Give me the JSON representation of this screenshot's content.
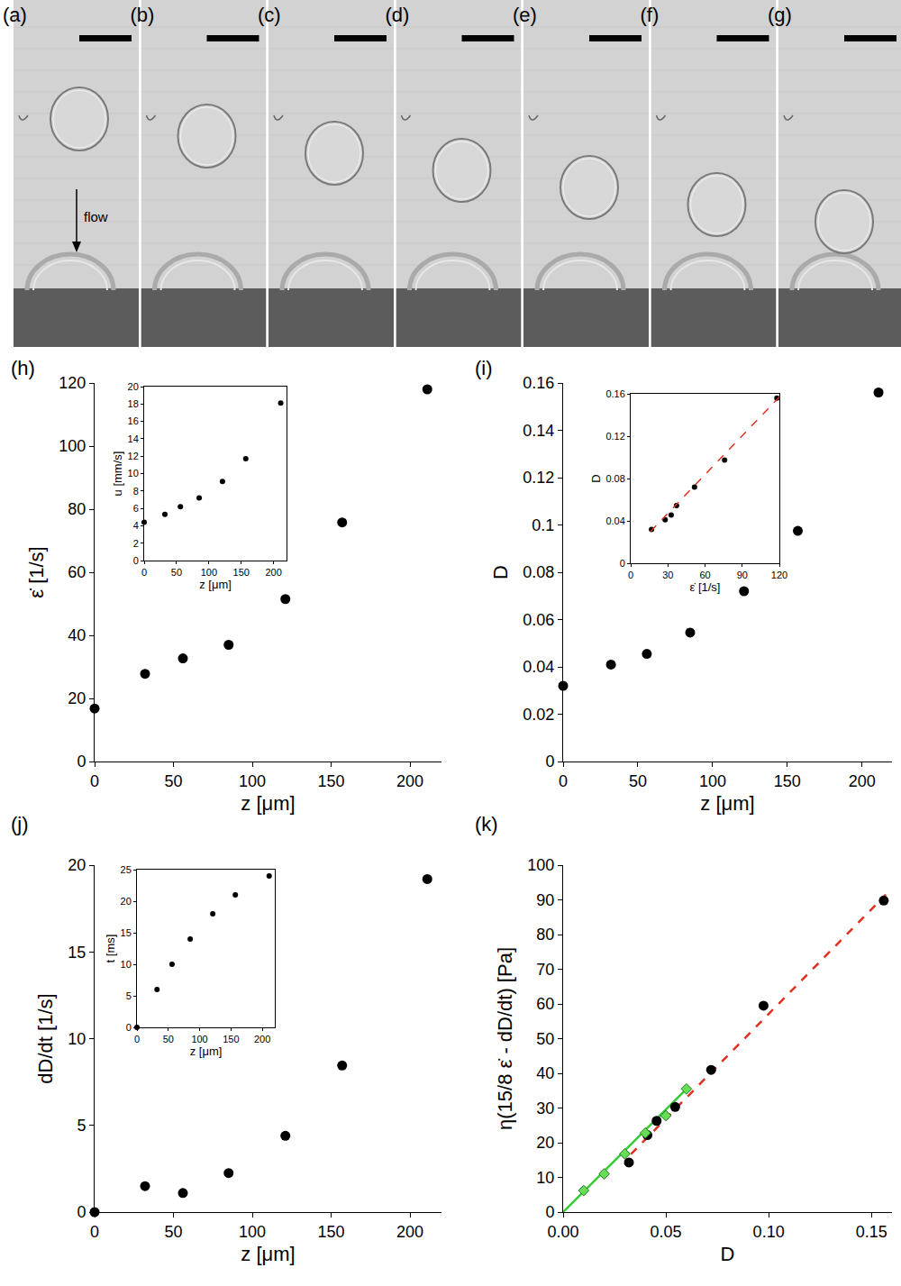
{
  "photo_strip": {
    "panel_labels": [
      "(a)",
      "(b)",
      "(c)",
      "(d)",
      "(e)",
      "(f)",
      "(g)"
    ],
    "arrow_label": "flow"
  },
  "chart_data": [
    {
      "panel_label": "(h)",
      "type": "scatter",
      "x_label": "z [μm]",
      "y_label": "ε̇ [1/s]",
      "xlim": [
        0,
        220
      ],
      "xticks": [
        0,
        50,
        100,
        150,
        200
      ],
      "ylim": [
        0,
        120
      ],
      "yticks": [
        0,
        20,
        40,
        60,
        80,
        100,
        120
      ],
      "series": [
        {
          "type": "scatter",
          "color": "#000000",
          "marker": "circle",
          "x": [
            0,
            32,
            56,
            85,
            121,
            157,
            211
          ],
          "values": [
            16.8,
            27.8,
            32.7,
            37,
            51.5,
            75.8,
            118
          ]
        }
      ],
      "inset": {
        "type": "scatter",
        "x_label": "z [μm]",
        "y_label": "u [mm/s]",
        "xlim": [
          0,
          220
        ],
        "xticks": [
          0,
          50,
          100,
          150,
          200
        ],
        "ylim": [
          0,
          20
        ],
        "yticks": [
          0,
          2,
          4,
          6,
          8,
          10,
          12,
          14,
          16,
          18,
          20
        ],
        "series": [
          {
            "type": "scatter",
            "color": "#000000",
            "marker": "circle",
            "x": [
              0,
              32,
              56,
              85,
              121,
              157,
              211
            ],
            "values": [
              4.4,
              5.3,
              6.2,
              7.2,
              9.1,
              11.7,
              18.1
            ]
          }
        ]
      }
    },
    {
      "panel_label": "(i)",
      "type": "scatter",
      "x_label": "z [μm]",
      "y_label": "D",
      "xlim": [
        0,
        220
      ],
      "xticks": [
        0,
        50,
        100,
        150,
        200
      ],
      "ylim": [
        0,
        0.16
      ],
      "yticks": [
        0,
        0.02,
        0.04,
        0.06,
        0.08,
        0.1,
        0.12,
        0.14,
        0.16
      ],
      "series": [
        {
          "type": "scatter",
          "color": "#000000",
          "marker": "circle",
          "x": [
            0,
            32,
            56,
            85,
            121,
            157,
            211
          ],
          "values": [
            0.032,
            0.041,
            0.0455,
            0.0545,
            0.072,
            0.0975,
            0.156
          ]
        }
      ],
      "inset": {
        "type": "scatter",
        "x_label": "ε̇ [1/s]",
        "y_label": "D",
        "xlim": [
          0,
          120
        ],
        "xticks": [
          0,
          30,
          60,
          90,
          120
        ],
        "ylim": [
          0,
          0.16
        ],
        "yticks": [
          0,
          0.04,
          0.08,
          0.12,
          0.16
        ],
        "series": [
          {
            "type": "scatter",
            "color": "#000000",
            "marker": "circle",
            "x": [
              16.8,
              27.8,
              32.7,
              37,
              51.5,
              75.8,
              118
            ],
            "values": [
              0.032,
              0.041,
              0.0455,
              0.0545,
              0.072,
              0.0975,
              0.156
            ]
          },
          {
            "type": "line",
            "color": "#e03020",
            "line_style": "dashed",
            "x": [
              16,
              120
            ],
            "values": [
              0.03,
              0.157
            ]
          }
        ]
      }
    },
    {
      "panel_label": "(j)",
      "type": "scatter",
      "x_label": "z [μm]",
      "y_label": "dD/dt [1/s]",
      "xlim": [
        0,
        220
      ],
      "xticks": [
        0,
        50,
        100,
        150,
        200
      ],
      "ylim": [
        0,
        20
      ],
      "yticks": [
        0,
        5,
        10,
        15,
        20
      ],
      "series": [
        {
          "type": "scatter",
          "color": "#000000",
          "marker": "circle",
          "x": [
            0,
            32,
            56,
            85,
            121,
            157,
            211
          ],
          "values": [
            0,
            1.5,
            1.1,
            2.25,
            4.4,
            8.45,
            19.2
          ]
        }
      ],
      "inset": {
        "type": "scatter",
        "x_label": "z [μm]",
        "y_label": "t [ms]",
        "xlim": [
          0,
          220
        ],
        "xticks": [
          0,
          50,
          100,
          150,
          200
        ],
        "ylim": [
          0,
          25
        ],
        "yticks": [
          0,
          5,
          10,
          15,
          20,
          25
        ],
        "series": [
          {
            "type": "scatter",
            "color": "#000000",
            "marker": "circle",
            "x": [
              0,
              32,
              56,
              85,
              121,
              157,
              211
            ],
            "values": [
              0,
              6,
              10,
              14,
              18,
              21,
              24
            ]
          }
        ]
      }
    },
    {
      "panel_label": "(k)",
      "type": "scatter",
      "x_label": "D",
      "y_label": "η(15/8 ε̇ - dD/dt) [Pa]",
      "xlim": [
        0,
        0.16
      ],
      "xticks": [
        {
          "value": 0,
          "label": "0.00"
        },
        {
          "value": 0.05,
          "label": "0.05"
        },
        {
          "value": 0.1,
          "label": "0.10"
        },
        {
          "value": 0.15,
          "label": "0.15"
        }
      ],
      "ylim": [
        0,
        100
      ],
      "yticks": [
        0,
        10,
        20,
        30,
        40,
        50,
        60,
        70,
        80,
        90,
        100
      ],
      "series": [
        {
          "type": "line",
          "color": "#33cc33",
          "line_style": "solid",
          "x": [
            0,
            0.06
          ],
          "values": [
            0,
            35.5
          ]
        },
        {
          "type": "line",
          "color": "#e03020",
          "line_style": "dashed",
          "x": [
            0.033,
            0.157
          ],
          "values": [
            16.7,
            91.5
          ]
        },
        {
          "type": "scatter",
          "color": "#000000",
          "marker": "circle",
          "x": [
            0.032,
            0.041,
            0.0455,
            0.0545,
            0.072,
            0.0975,
            0.156
          ],
          "values": [
            14.3,
            22.2,
            26.3,
            30.3,
            41,
            59.5,
            89.8
          ]
        },
        {
          "type": "scatter",
          "color": "#66dd55",
          "marker": "diamond",
          "x": [
            0.01,
            0.02,
            0.03,
            0.04,
            0.05,
            0.06
          ],
          "values": [
            6.2,
            11,
            16.8,
            22.8,
            27.8,
            35.5
          ]
        }
      ]
    }
  ]
}
